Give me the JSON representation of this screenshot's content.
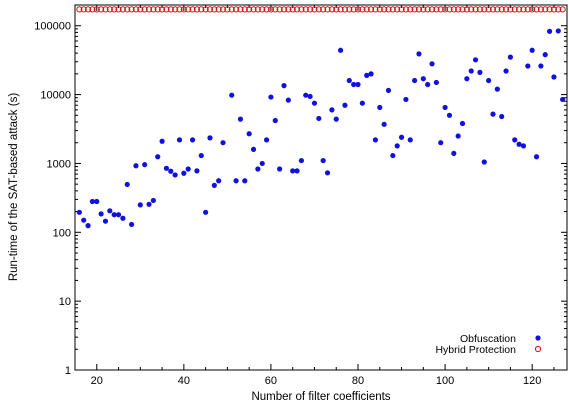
{
  "chart_data": {
    "type": "scatter",
    "title": "",
    "xlabel": "Number of filter coefficients",
    "ylabel": "Run-time of the SAT-based attack (s)",
    "xlim": [
      15,
      128
    ],
    "ylim": [
      1,
      200000
    ],
    "yscale": "log",
    "grid": false,
    "legend_position": "bottom-right",
    "x_ticks": [
      20,
      40,
      60,
      80,
      100,
      120
    ],
    "x_tick_labels": [
      "20",
      "40",
      "60",
      "80",
      "100",
      "120"
    ],
    "y_ticks": [
      1,
      10,
      100,
      1000,
      10000,
      100000
    ],
    "y_tick_labels": [
      "1",
      "10",
      "100",
      "1000",
      "10000",
      "100000"
    ],
    "series": [
      {
        "name": "Obfuscation",
        "marker": "filled-circle",
        "color": "#1010e0",
        "points": [
          [
            16,
            195
          ],
          [
            17,
            150
          ],
          [
            18,
            125
          ],
          [
            19,
            280
          ],
          [
            20,
            280
          ],
          [
            21,
            185
          ],
          [
            22,
            145
          ],
          [
            23,
            205
          ],
          [
            24,
            180
          ],
          [
            25,
            180
          ],
          [
            26,
            160
          ],
          [
            27,
            495
          ],
          [
            28,
            130
          ],
          [
            29,
            925
          ],
          [
            30,
            250
          ],
          [
            31,
            960
          ],
          [
            32,
            255
          ],
          [
            33,
            290
          ],
          [
            34,
            1250
          ],
          [
            35,
            2100
          ],
          [
            36,
            850
          ],
          [
            37,
            770
          ],
          [
            38,
            680
          ],
          [
            39,
            2200
          ],
          [
            40,
            720
          ],
          [
            41,
            830
          ],
          [
            42,
            2200
          ],
          [
            43,
            780
          ],
          [
            44,
            1300
          ],
          [
            45,
            195
          ],
          [
            46,
            2350
          ],
          [
            47,
            480
          ],
          [
            48,
            560
          ],
          [
            49,
            2000
          ],
          [
            51,
            9800
          ],
          [
            52,
            560
          ],
          [
            53,
            4400
          ],
          [
            54,
            560
          ],
          [
            55,
            2700
          ],
          [
            56,
            1600
          ],
          [
            57,
            830
          ],
          [
            58,
            1000
          ],
          [
            59,
            2200
          ],
          [
            60,
            9200
          ],
          [
            61,
            4200
          ],
          [
            62,
            830
          ],
          [
            63,
            13500
          ],
          [
            64,
            8300
          ],
          [
            65,
            780
          ],
          [
            66,
            780
          ],
          [
            67,
            1100
          ],
          [
            68,
            9800
          ],
          [
            69,
            9400
          ],
          [
            70,
            7500
          ],
          [
            71,
            4500
          ],
          [
            72,
            1100
          ],
          [
            73,
            730
          ],
          [
            74,
            6000
          ],
          [
            75,
            4400
          ],
          [
            76,
            44000
          ],
          [
            77,
            7000
          ],
          [
            78,
            16000
          ],
          [
            79,
            14000
          ],
          [
            80,
            14000
          ],
          [
            81,
            7500
          ],
          [
            82,
            19000
          ],
          [
            83,
            20000
          ],
          [
            84,
            2200
          ],
          [
            85,
            6500
          ],
          [
            86,
            3700
          ],
          [
            87,
            11500
          ],
          [
            88,
            1300
          ],
          [
            89,
            1800
          ],
          [
            90,
            2400
          ],
          [
            91,
            8500
          ],
          [
            92,
            2200
          ],
          [
            93,
            16000
          ],
          [
            94,
            39000
          ],
          [
            95,
            17000
          ],
          [
            96,
            14000
          ],
          [
            97,
            28000
          ],
          [
            98,
            15000
          ],
          [
            99,
            2000
          ],
          [
            100,
            6500
          ],
          [
            101,
            5000
          ],
          [
            102,
            1400
          ],
          [
            103,
            2500
          ],
          [
            104,
            3800
          ],
          [
            105,
            17000
          ],
          [
            106,
            22000
          ],
          [
            107,
            32000
          ],
          [
            108,
            21000
          ],
          [
            109,
            1050
          ],
          [
            110,
            16000
          ],
          [
            111,
            5200
          ],
          [
            112,
            12000
          ],
          [
            113,
            4800
          ],
          [
            114,
            22000
          ],
          [
            115,
            35000
          ],
          [
            116,
            2200
          ],
          [
            117,
            1900
          ],
          [
            118,
            1800
          ],
          [
            119,
            26000
          ],
          [
            120,
            44000
          ],
          [
            121,
            1250
          ],
          [
            122,
            26000
          ],
          [
            123,
            38000
          ],
          [
            124,
            83000
          ],
          [
            125,
            18000
          ],
          [
            126,
            84000
          ],
          [
            127,
            8500
          ]
        ]
      },
      {
        "name": "Hybrid Protection",
        "marker": "open-circle",
        "color": "#e01010",
        "x_start": 16,
        "x_end": 127,
        "value": 172800
      }
    ]
  }
}
